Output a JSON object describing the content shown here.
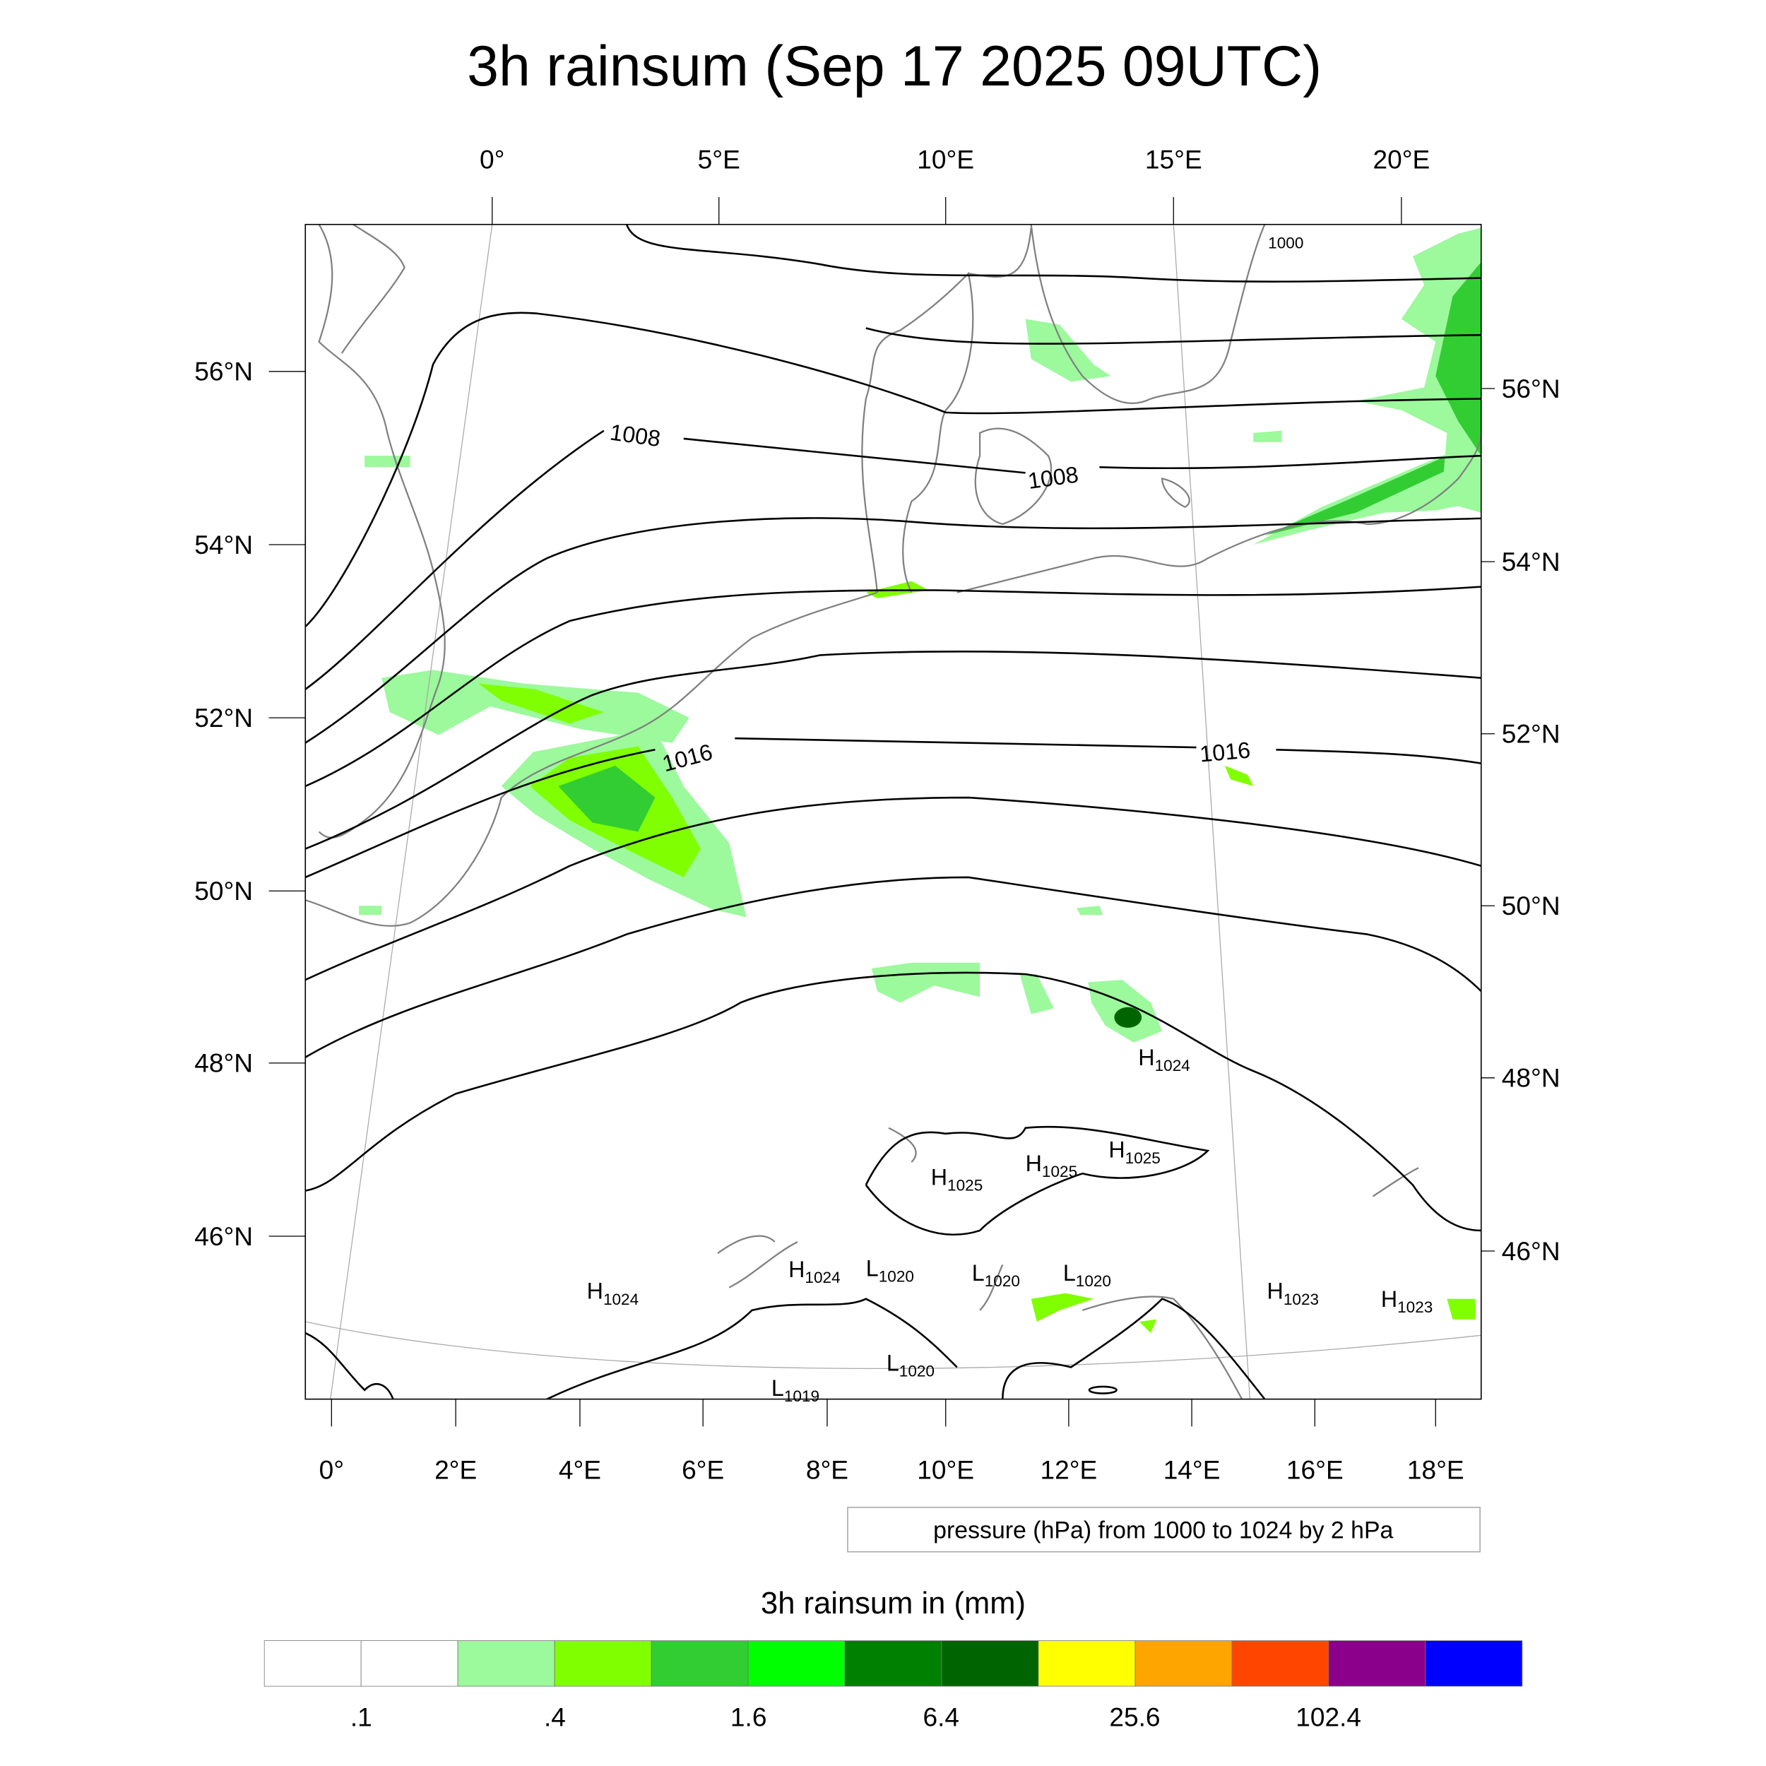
{
  "title": "3h rainsum (Sep 17 2025 09UTC)",
  "axes": {
    "lon_top": [
      "0°",
      "5°E",
      "10°E",
      "15°E",
      "20°E"
    ],
    "lat_left": [
      "56°N",
      "54°N",
      "52°N",
      "50°N",
      "48°N",
      "46°N"
    ],
    "lat_right": [
      "56°N",
      "54°N",
      "52°N",
      "50°N",
      "48°N",
      "46°N"
    ],
    "lon_bottom": [
      "0°",
      "2°E",
      "4°E",
      "6°E",
      "8°E",
      "10°E",
      "12°E",
      "14°E",
      "16°E",
      "18°E"
    ]
  },
  "contour_info": "pressure (hPa) from 1000 to 1024 by 2 hPa",
  "contour_labels": [
    "1000",
    "1008",
    "1008",
    "1016",
    "1016"
  ],
  "pressure_centers": [
    {
      "type": "H",
      "value": "1024"
    },
    {
      "type": "H",
      "value": "1025"
    },
    {
      "type": "H",
      "value": "1025"
    },
    {
      "type": "H",
      "value": "1025"
    },
    {
      "type": "H",
      "value": "1024"
    },
    {
      "type": "H",
      "value": "1024"
    },
    {
      "type": "L",
      "value": "1020"
    },
    {
      "type": "L",
      "value": "1020"
    },
    {
      "type": "L",
      "value": "1020"
    },
    {
      "type": "H",
      "value": "1023"
    },
    {
      "type": "H",
      "value": "1023"
    },
    {
      "type": "L",
      "value": "1020"
    },
    {
      "type": "L",
      "value": "1019"
    }
  ],
  "chart_data": {
    "type": "heatmap",
    "title": "3h rainsum (Sep 17 2025 09UTC)",
    "colorbar_title": "3h rainsum in (mm)",
    "colorbar_labels": [
      ".1",
      ".4",
      "1.6",
      "6.4",
      "25.6",
      "102.4"
    ],
    "levels": [
      0.1,
      0.2,
      0.4,
      0.8,
      1.6,
      3.2,
      6.4,
      12.8,
      25.6,
      51.2,
      102.4,
      204.8
    ],
    "colors": [
      "#ffffff",
      "#ffffff",
      "#9cf99c",
      "#80ff00",
      "#32cd32",
      "#00ff00",
      "#008000",
      "#006400",
      "#ffff00",
      "#ffa500",
      "#ff4500",
      "#8b008b",
      "#0000ff"
    ],
    "lon_range": [
      0,
      21
    ],
    "lat_range": [
      44.5,
      57.5
    ],
    "contour_field": "pressure (hPa)",
    "contour_range": [
      1000,
      1024
    ],
    "contour_interval": 2
  }
}
